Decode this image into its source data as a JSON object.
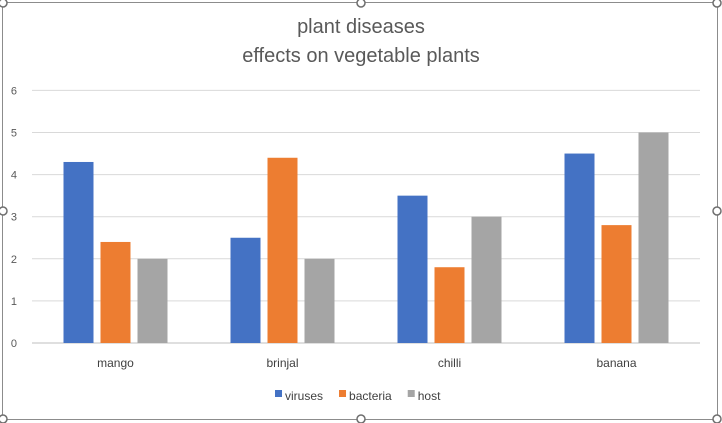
{
  "chart_data": {
    "type": "bar",
    "title": "plant diseases",
    "subtitle": "effects on vegetable plants",
    "categories": [
      "mango",
      "brinjal",
      "chilli",
      "banana"
    ],
    "series": [
      {
        "name": "viruses",
        "values": [
          4.3,
          2.5,
          3.5,
          4.5
        ],
        "color": "#4472C4"
      },
      {
        "name": "bacteria",
        "values": [
          2.4,
          4.4,
          1.8,
          2.8
        ],
        "color": "#ED7D31"
      },
      {
        "name": "host",
        "values": [
          2.0,
          2.0,
          3.0,
          5.0
        ],
        "color": "#A5A5A5"
      }
    ],
    "ylim": [
      0,
      6
    ],
    "yticks": [
      "0",
      "1",
      "2",
      "3",
      "4",
      "5",
      "6"
    ],
    "grid": true,
    "legend_position": "bottom"
  }
}
